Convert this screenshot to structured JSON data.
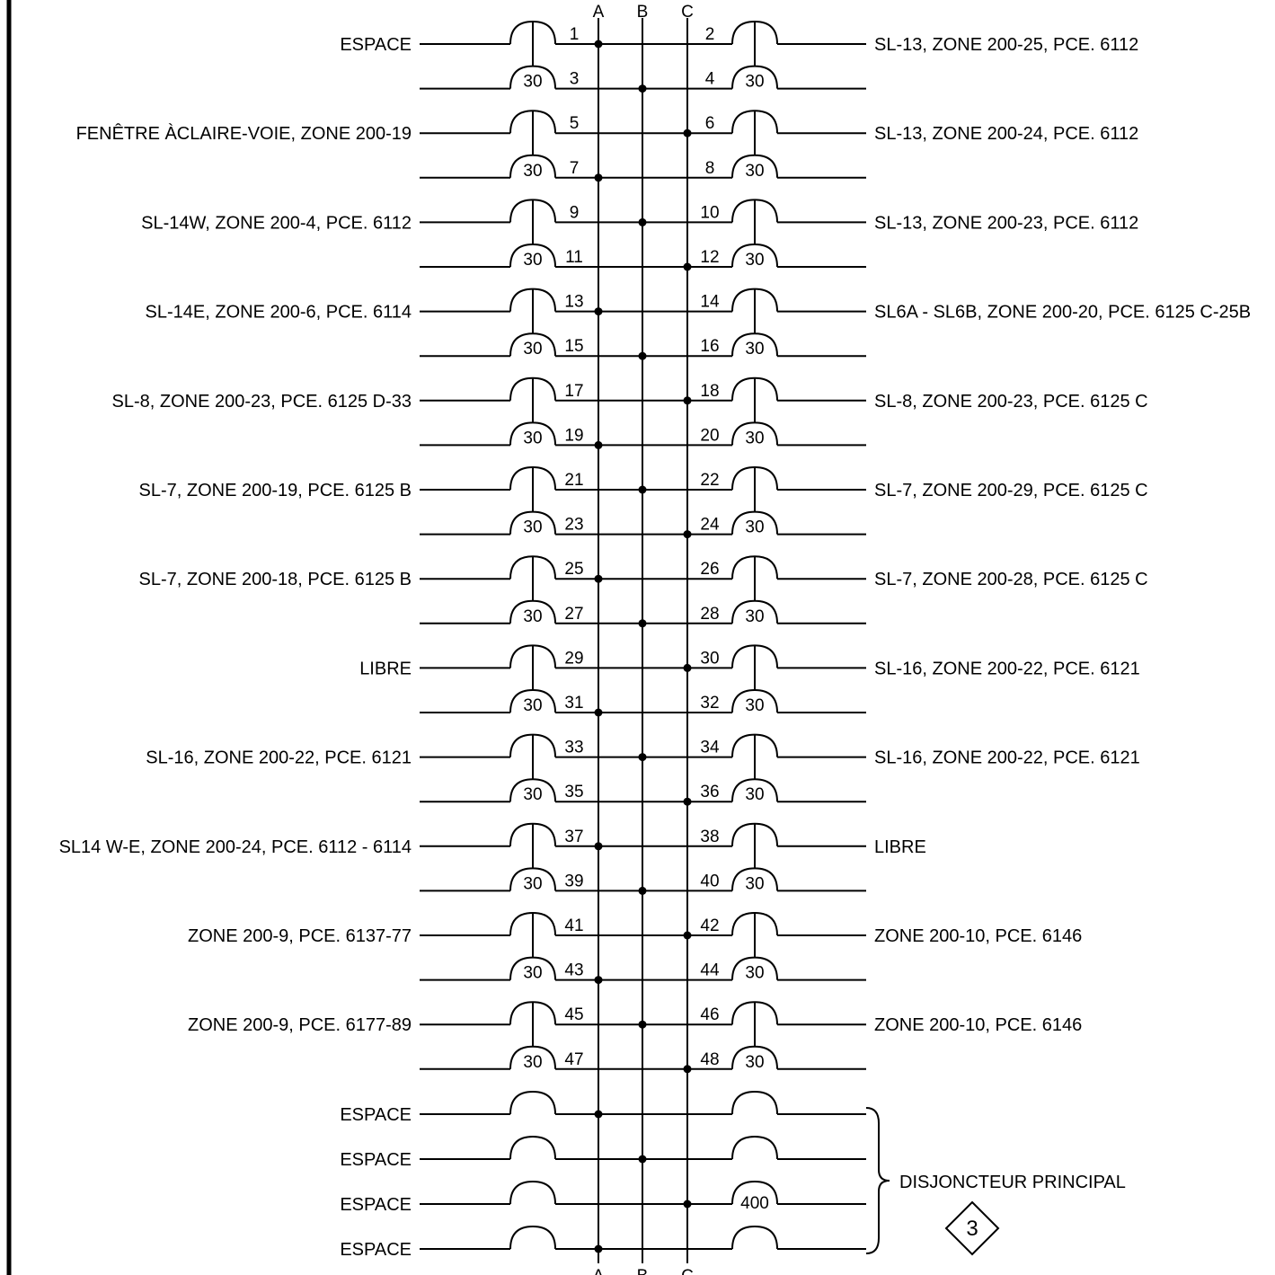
{
  "phases": [
    "A",
    "B",
    "C"
  ],
  "left_loads": [
    "ESPACE",
    "FENÊTRE ÀCLAIRE-VOIE, ZONE 200-19",
    "SL-14W, ZONE 200-4, PCE. 6112",
    "SL-14E, ZONE 200-6, PCE. 6114",
    "SL-8, ZONE 200-23, PCE. 6125 D-33",
    "SL-7, ZONE 200-19, PCE. 6125 B",
    "SL-7, ZONE 200-18, PCE. 6125 B",
    "LIBRE",
    "SL-16, ZONE 200-22, PCE. 6121",
    "SL14 W-E, ZONE 200-24, PCE. 6112 - 6114",
    "ZONE 200-9, PCE. 6137-77",
    "ZONE 200-9, PCE. 6177-89"
  ],
  "right_loads": [
    "SL-13, ZONE 200-25, PCE. 6112",
    "SL-13, ZONE 200-24, PCE. 6112",
    "SL-13, ZONE 200-23, PCE. 6112",
    "SL6A - SL6B, ZONE 200-20, PCE. 6125 C-25B",
    "SL-8, ZONE 200-23, PCE. 6125 C",
    "SL-7, ZONE 200-29, PCE. 6125 C",
    "SL-7, ZONE 200-28, PCE. 6125 C",
    "SL-16, ZONE 200-22, PCE. 6121",
    "SL-16, ZONE 200-22, PCE. 6121",
    "LIBRE",
    "ZONE 200-10, PCE. 6146",
    "ZONE 200-10, PCE. 6146"
  ],
  "circuit_numbers": [
    "1",
    "2",
    "3",
    "4",
    "5",
    "6",
    "7",
    "8",
    "9",
    "10",
    "11",
    "12",
    "13",
    "14",
    "15",
    "16",
    "17",
    "18",
    "19",
    "20",
    "21",
    "22",
    "23",
    "24",
    "25",
    "26",
    "27",
    "28",
    "29",
    "30",
    "31",
    "32",
    "33",
    "34",
    "35",
    "36",
    "37",
    "38",
    "39",
    "40",
    "41",
    "42",
    "43",
    "44",
    "45",
    "46",
    "47",
    "48"
  ],
  "breaker_rating": "30",
  "bottom_spaces": [
    "ESPACE",
    "ESPACE",
    "ESPACE",
    "ESPACE"
  ],
  "main_breaker_rating": "400",
  "main_breaker_label": "DISJONCTEUR PRINCIPAL",
  "revision_mark": "3"
}
